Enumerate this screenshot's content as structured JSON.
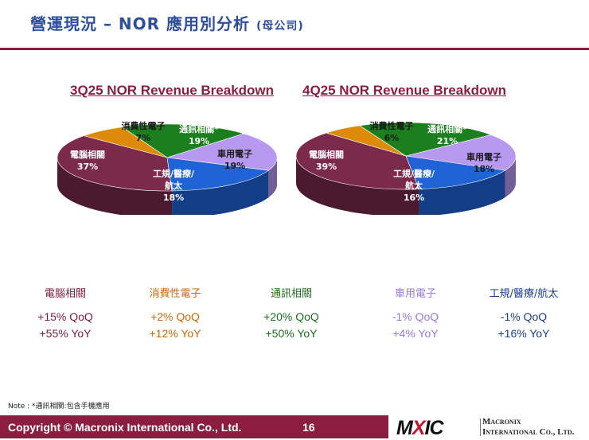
{
  "header": {
    "title": "營運現況 – NOR 應用別分析",
    "subtitle": "(母公司)"
  },
  "charts": [
    {
      "title": "3Q25 NOR Revenue Breakdown",
      "chart_data": {
        "type": "pie",
        "title": "3Q25 NOR Revenue Breakdown",
        "categories": [
          "電腦相關",
          "消費性電子",
          "通訊相關*",
          "車用電子",
          "工規/醫療/航太"
        ],
        "values": [
          37,
          7,
          19,
          19,
          18
        ],
        "value_labels": [
          "37%",
          "7%",
          "19%",
          "19%",
          "18%"
        ]
      }
    },
    {
      "title": "4Q25 NOR Revenue Breakdown",
      "chart_data": {
        "type": "pie",
        "title": "4Q25 NOR Revenue Breakdown",
        "categories": [
          "電腦相關",
          "消費性電子",
          "通訊相關*",
          "車用電子",
          "工規/醫療/航太"
        ],
        "values": [
          39,
          6,
          21,
          18,
          16
        ],
        "value_labels": [
          "39%",
          "6%",
          "21%",
          "18%",
          "16%"
        ]
      }
    }
  ],
  "segment_colors": {
    "computer": "#7b2a4c",
    "consumer": "#dd8a08",
    "comm": "#1a7f1c",
    "auto": "#b79af0",
    "industrial": "#1f63d6"
  },
  "summary": [
    {
      "label": "電腦相關",
      "qoq": "+15% QoQ",
      "yoy": "+55% YoY",
      "color": "#7b1e3a"
    },
    {
      "label": "消費性電子",
      "qoq": "+2%  QoQ",
      "yoy": "+12%  YoY",
      "color": "#c8690c"
    },
    {
      "label": "通訊相關",
      "qoq": "+20% QoQ",
      "yoy": "+50%  YoY",
      "color": "#1f6b1f"
    },
    {
      "label": "車用電子",
      "qoq": "-1% QoQ",
      "yoy": "+4% YoY",
      "color": "#9b7ae0"
    },
    {
      "label": "工規/醫療/航太",
      "qoq": "-1% QoQ",
      "yoy": "+16% YoY",
      "color": "#1b3e8a"
    }
  ],
  "note": "Note : *通訊相關:包含手機應用",
  "footer": {
    "copyright": "Copyright © Macronix International Co., Ltd.",
    "page": "16",
    "logo_m": "M",
    "logo_x": "X",
    "logo_ic": "IC",
    "company_line1": "Macronix",
    "company_line2": "International Co., Ltd."
  }
}
